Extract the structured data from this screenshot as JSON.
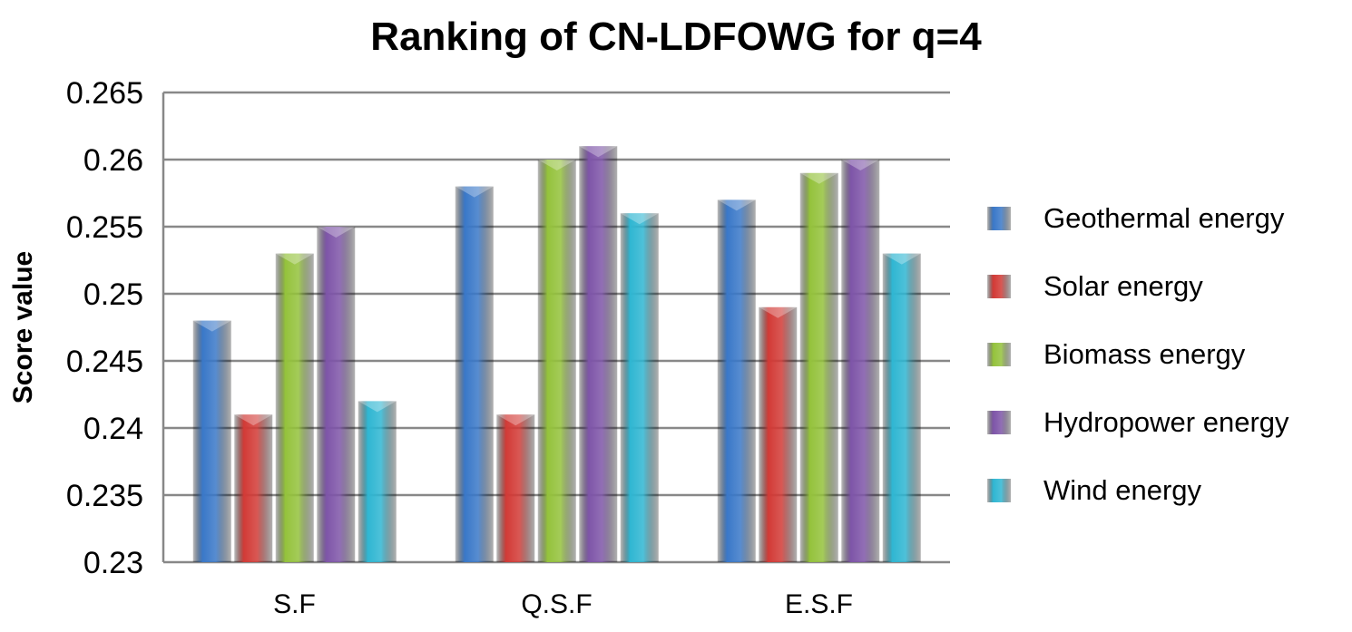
{
  "chart_data": {
    "type": "bar",
    "title": "Ranking of CN-LDFOWG for q=4",
    "xlabel": "",
    "ylabel": "Score value",
    "ylim": [
      0.23,
      0.265
    ],
    "yticks": [
      "0.23",
      "0.235",
      "0.24",
      "0.245",
      "0.25",
      "0.255",
      "0.26",
      "0.265"
    ],
    "grid": true,
    "legend_position": "right",
    "categories": [
      "S.F",
      "Q.S.F",
      "E.S.F"
    ],
    "series": [
      {
        "name": "Geothermal energy",
        "color": "#3a78c8",
        "values": [
          0.248,
          0.258,
          0.257
        ]
      },
      {
        "name": "Solar energy",
        "color": "#d23a36",
        "values": [
          0.241,
          0.241,
          0.249
        ]
      },
      {
        "name": "Biomass energy",
        "color": "#94c23c",
        "values": [
          0.253,
          0.26,
          0.259
        ]
      },
      {
        "name": "Hydropower energy",
        "color": "#7e55a8",
        "values": [
          0.255,
          0.261,
          0.26
        ]
      },
      {
        "name": "Wind energy",
        "color": "#2fb6d2",
        "values": [
          0.242,
          0.256,
          0.253
        ]
      }
    ]
  }
}
